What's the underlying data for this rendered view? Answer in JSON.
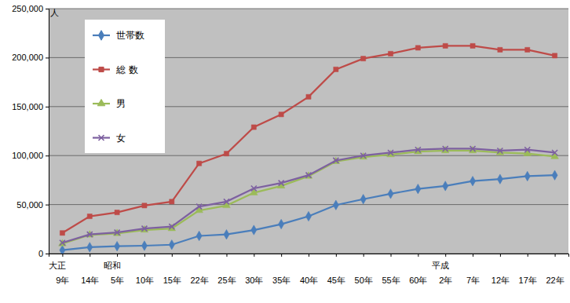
{
  "chart_data": {
    "type": "line",
    "y_label": "人",
    "categories": [
      "9年",
      "14年",
      "5年",
      "10年",
      "15年",
      "22年",
      "25年",
      "30年",
      "35年",
      "40年",
      "45年",
      "50年",
      "55年",
      "60年",
      "2年",
      "7年",
      "12年",
      "17年",
      "22年"
    ],
    "x_era_labels": [
      "大正",
      null,
      "昭和",
      null,
      null,
      null,
      null,
      null,
      null,
      null,
      null,
      null,
      null,
      null,
      "平成",
      null,
      null,
      null,
      null
    ],
    "series": [
      {
        "name": "世帯数",
        "color": "#4a7ebb",
        "marker": "diamond",
        "values": [
          3500,
          6500,
          7500,
          8000,
          9000,
          18000,
          19500,
          24000,
          30000,
          38000,
          49500,
          55500,
          61000,
          66000,
          69000,
          74000,
          76000,
          79000,
          80000
        ]
      },
      {
        "name": "総 数",
        "color": "#be4b48",
        "marker": "square",
        "values": [
          21000,
          38000,
          42000,
          49000,
          53000,
          92000,
          102000,
          129000,
          142000,
          160000,
          188000,
          199000,
          204000,
          210000,
          212000,
          212000,
          208000,
          208000,
          202000
        ]
      },
      {
        "name": "男",
        "color": "#9bbb59",
        "marker": "triangle",
        "values": [
          10000,
          19000,
          20500,
          24000,
          25500,
          44000,
          49000,
          62000,
          69000,
          79000,
          94000,
          98500,
          101000,
          104000,
          105000,
          105000,
          103000,
          102000,
          99000
        ]
      },
      {
        "name": "女",
        "color": "#7d60a0",
        "marker": "x",
        "values": [
          11000,
          19500,
          21500,
          25500,
          27500,
          48000,
          53000,
          66500,
          72000,
          80000,
          95000,
          100000,
          103000,
          106000,
          107000,
          107000,
          105000,
          106000,
          103000
        ]
      }
    ],
    "ylim": [
      0,
      250000
    ],
    "yticks": [
      0,
      {
        "value": 50000,
        "label": "50,000"
      },
      {
        "value": 100000,
        "label": "100,000"
      },
      {
        "value": 150000,
        "label": "150,000"
      },
      {
        "value": 200000,
        "label": "200,000"
      },
      {
        "value": 250000,
        "label": "250,000"
      }
    ],
    "grid": true,
    "legend": "top-left"
  }
}
